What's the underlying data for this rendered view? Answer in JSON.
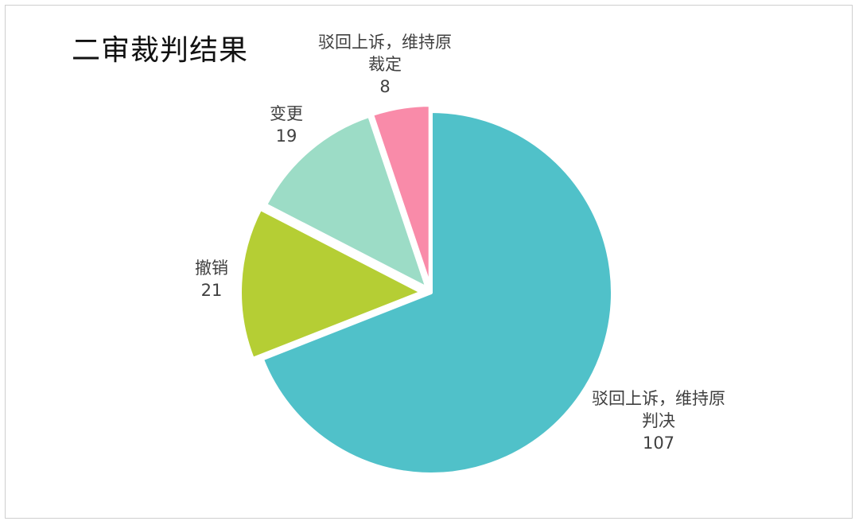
{
  "title": "二审裁判结果",
  "chart_data": {
    "type": "pie",
    "title": "二审裁判结果",
    "slices": [
      {
        "label_lines": [
          "驳回上诉，维持原",
          "判决"
        ],
        "value": 107,
        "color": "#50C1C9"
      },
      {
        "label_lines": [
          "撤销"
        ],
        "value": 21,
        "color": "#B5CE34"
      },
      {
        "label_lines": [
          "变更"
        ],
        "value": 19,
        "color": "#9CDCC6"
      },
      {
        "label_lines": [
          "驳回上诉，维持原",
          "裁定"
        ],
        "value": 8,
        "color": "#F98BA9"
      }
    ]
  }
}
